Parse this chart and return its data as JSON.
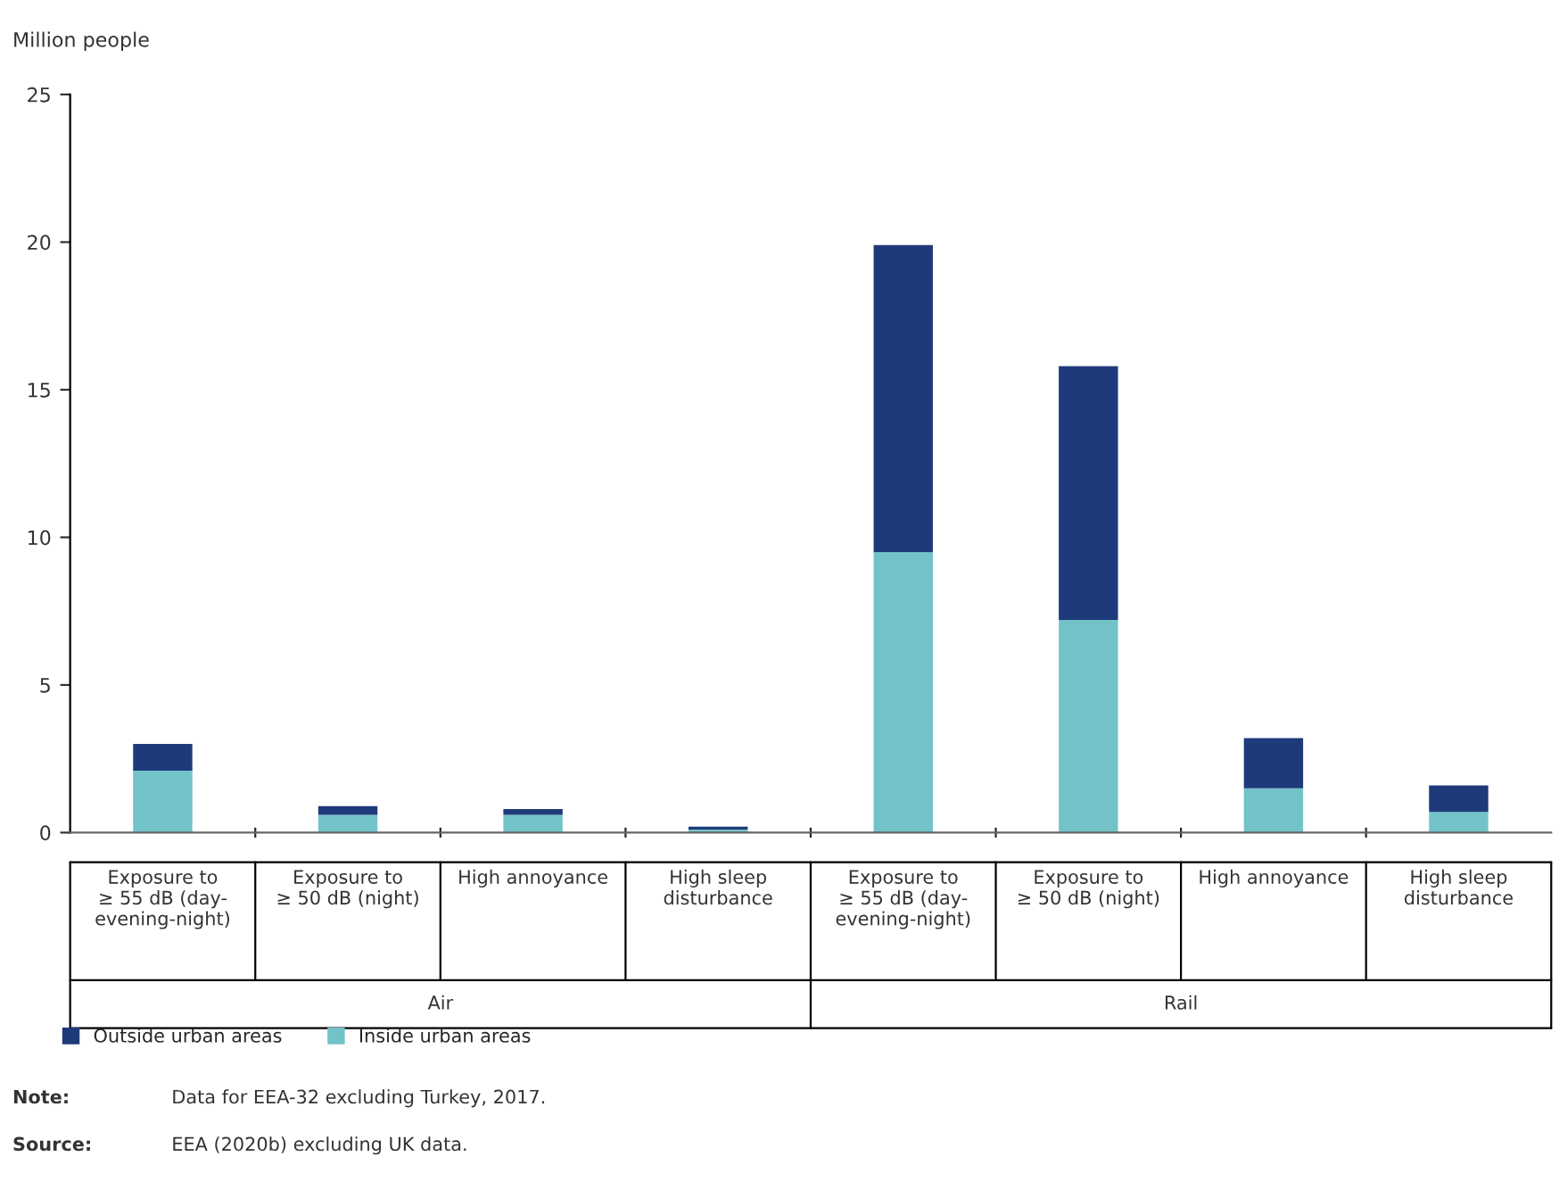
{
  "chart_data": {
    "type": "bar",
    "stacked": true,
    "ylabel": "Million people",
    "categories": [
      "Exposure to\n≥ 55 dB (day-\nevening-night)",
      "Exposure to\n≥ 50 dB (night)",
      "High annoyance",
      "High sleep\ndisturbance",
      "Exposure to\n≥ 55 dB (day-\nevening-night)",
      "Exposure to\n≥ 50 dB (night)",
      "High annoyance",
      "High sleep\ndisturbance"
    ],
    "series": [
      {
        "name": "Inside urban areas",
        "color": "#72c3c8",
        "values": [
          2.1,
          0.6,
          0.6,
          0.1,
          9.5,
          7.2,
          1.5,
          0.7
        ]
      },
      {
        "name": "Outside urban areas",
        "color": "#1f3a7a",
        "values": [
          0.9,
          0.3,
          0.2,
          0.1,
          10.4,
          8.6,
          1.7,
          0.9
        ]
      }
    ],
    "ylim": [
      0,
      25
    ],
    "yticks": [
      0,
      5,
      10,
      15,
      20,
      25
    ],
    "grid": false,
    "legend": "bottom",
    "annotations": [
      "Air",
      "Rail",
      "Note: Data for EEA-32 excluding Turkey, 2017.",
      "Source: EEA (2020b) excluding UK data."
    ]
  }
}
